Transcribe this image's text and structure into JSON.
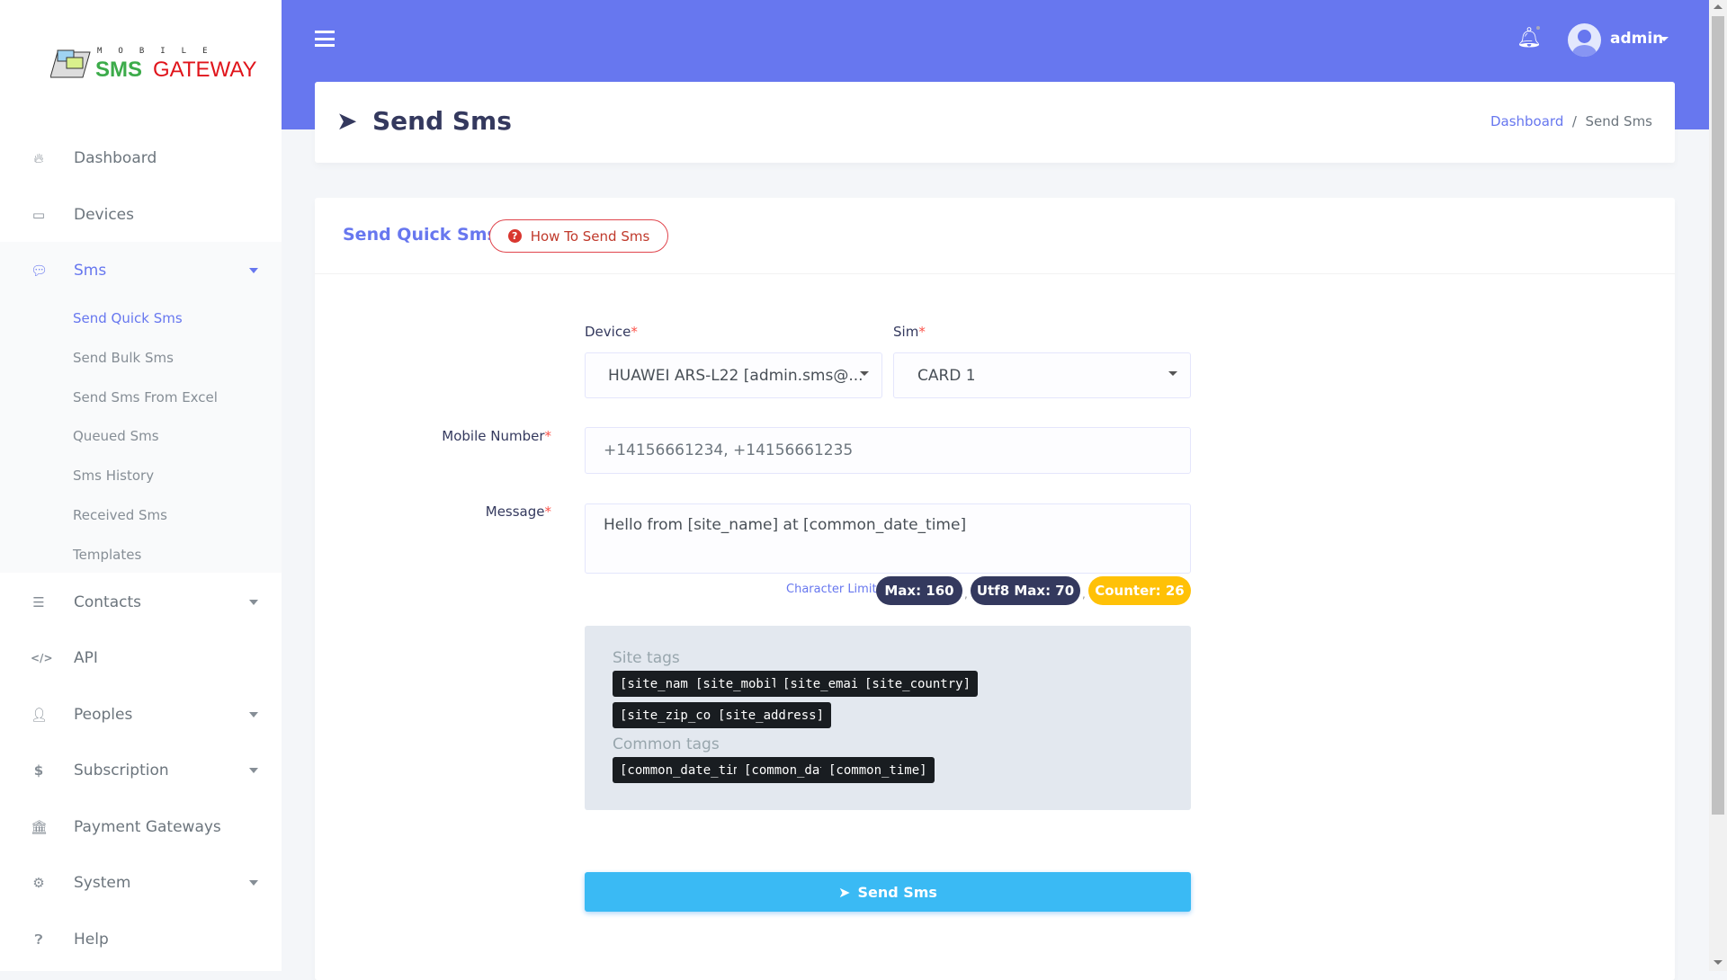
{
  "logo": {
    "top": "MOBILE",
    "sms": "SMS",
    "gateway": "GATEWAY"
  },
  "sidebar": {
    "items": [
      {
        "label": "Dashboard",
        "icon": "fire-icon"
      },
      {
        "label": "Devices",
        "icon": "laptop-icon"
      },
      {
        "label": "Sms",
        "icon": "comments-icon"
      },
      {
        "label": "Contacts",
        "icon": "list-icon"
      },
      {
        "label": "API",
        "icon": "code-icon"
      },
      {
        "label": "Peoples",
        "icon": "user-icon"
      },
      {
        "label": "Subscription",
        "icon": "dollar-icon"
      },
      {
        "label": "Payment Gateways",
        "icon": "bank-icon"
      },
      {
        "label": "System",
        "icon": "gear-icon"
      },
      {
        "label": "Help",
        "icon": "question-icon"
      }
    ],
    "sms_sub": [
      "Send Quick Sms",
      "Send Bulk Sms",
      "Send Sms From Excel",
      "Queued Sms",
      "Sms History",
      "Received Sms",
      "Templates"
    ]
  },
  "header": {
    "user": "admin"
  },
  "page": {
    "title": "Send Sms",
    "breadcrumb": [
      "Dashboard",
      "Send Sms"
    ]
  },
  "form": {
    "card_title": "Send Quick Sms",
    "help_button": "How To Send Sms",
    "device_label": "Device",
    "device_value": "HUAWEI ARS-L22 [admin.sms@...",
    "sim_label": "Sim",
    "sim_value": "CARD 1",
    "mobile_label": "Mobile Number",
    "mobile_placeholder": "+14156661234, +14156661235",
    "message_label": "Message",
    "message_value": "Hello from [site_name] at [common_date_time]",
    "req": "*",
    "char_limit": "Character Limit",
    "max": "Max: 160",
    "utf8": "Utf8 Max: 70",
    "counter": "Counter: 26",
    "comma": ",",
    "site_tags_label": "Site tags",
    "site_tags": [
      "[site_name]",
      "[site_mobile]",
      "[site_email]",
      "[site_country]",
      "[site_zip_code]",
      "[site_address]"
    ],
    "common_tags_label": "Common tags",
    "common_tags": [
      "[common_date_time]",
      "[common_date]",
      "[common_time]"
    ],
    "send_button": "Send Sms"
  },
  "colors": {
    "primary": "#6777ef",
    "info": "#3abaf4",
    "warning": "#ffc107",
    "danger": "#fc544b",
    "dark": "#34395e"
  }
}
